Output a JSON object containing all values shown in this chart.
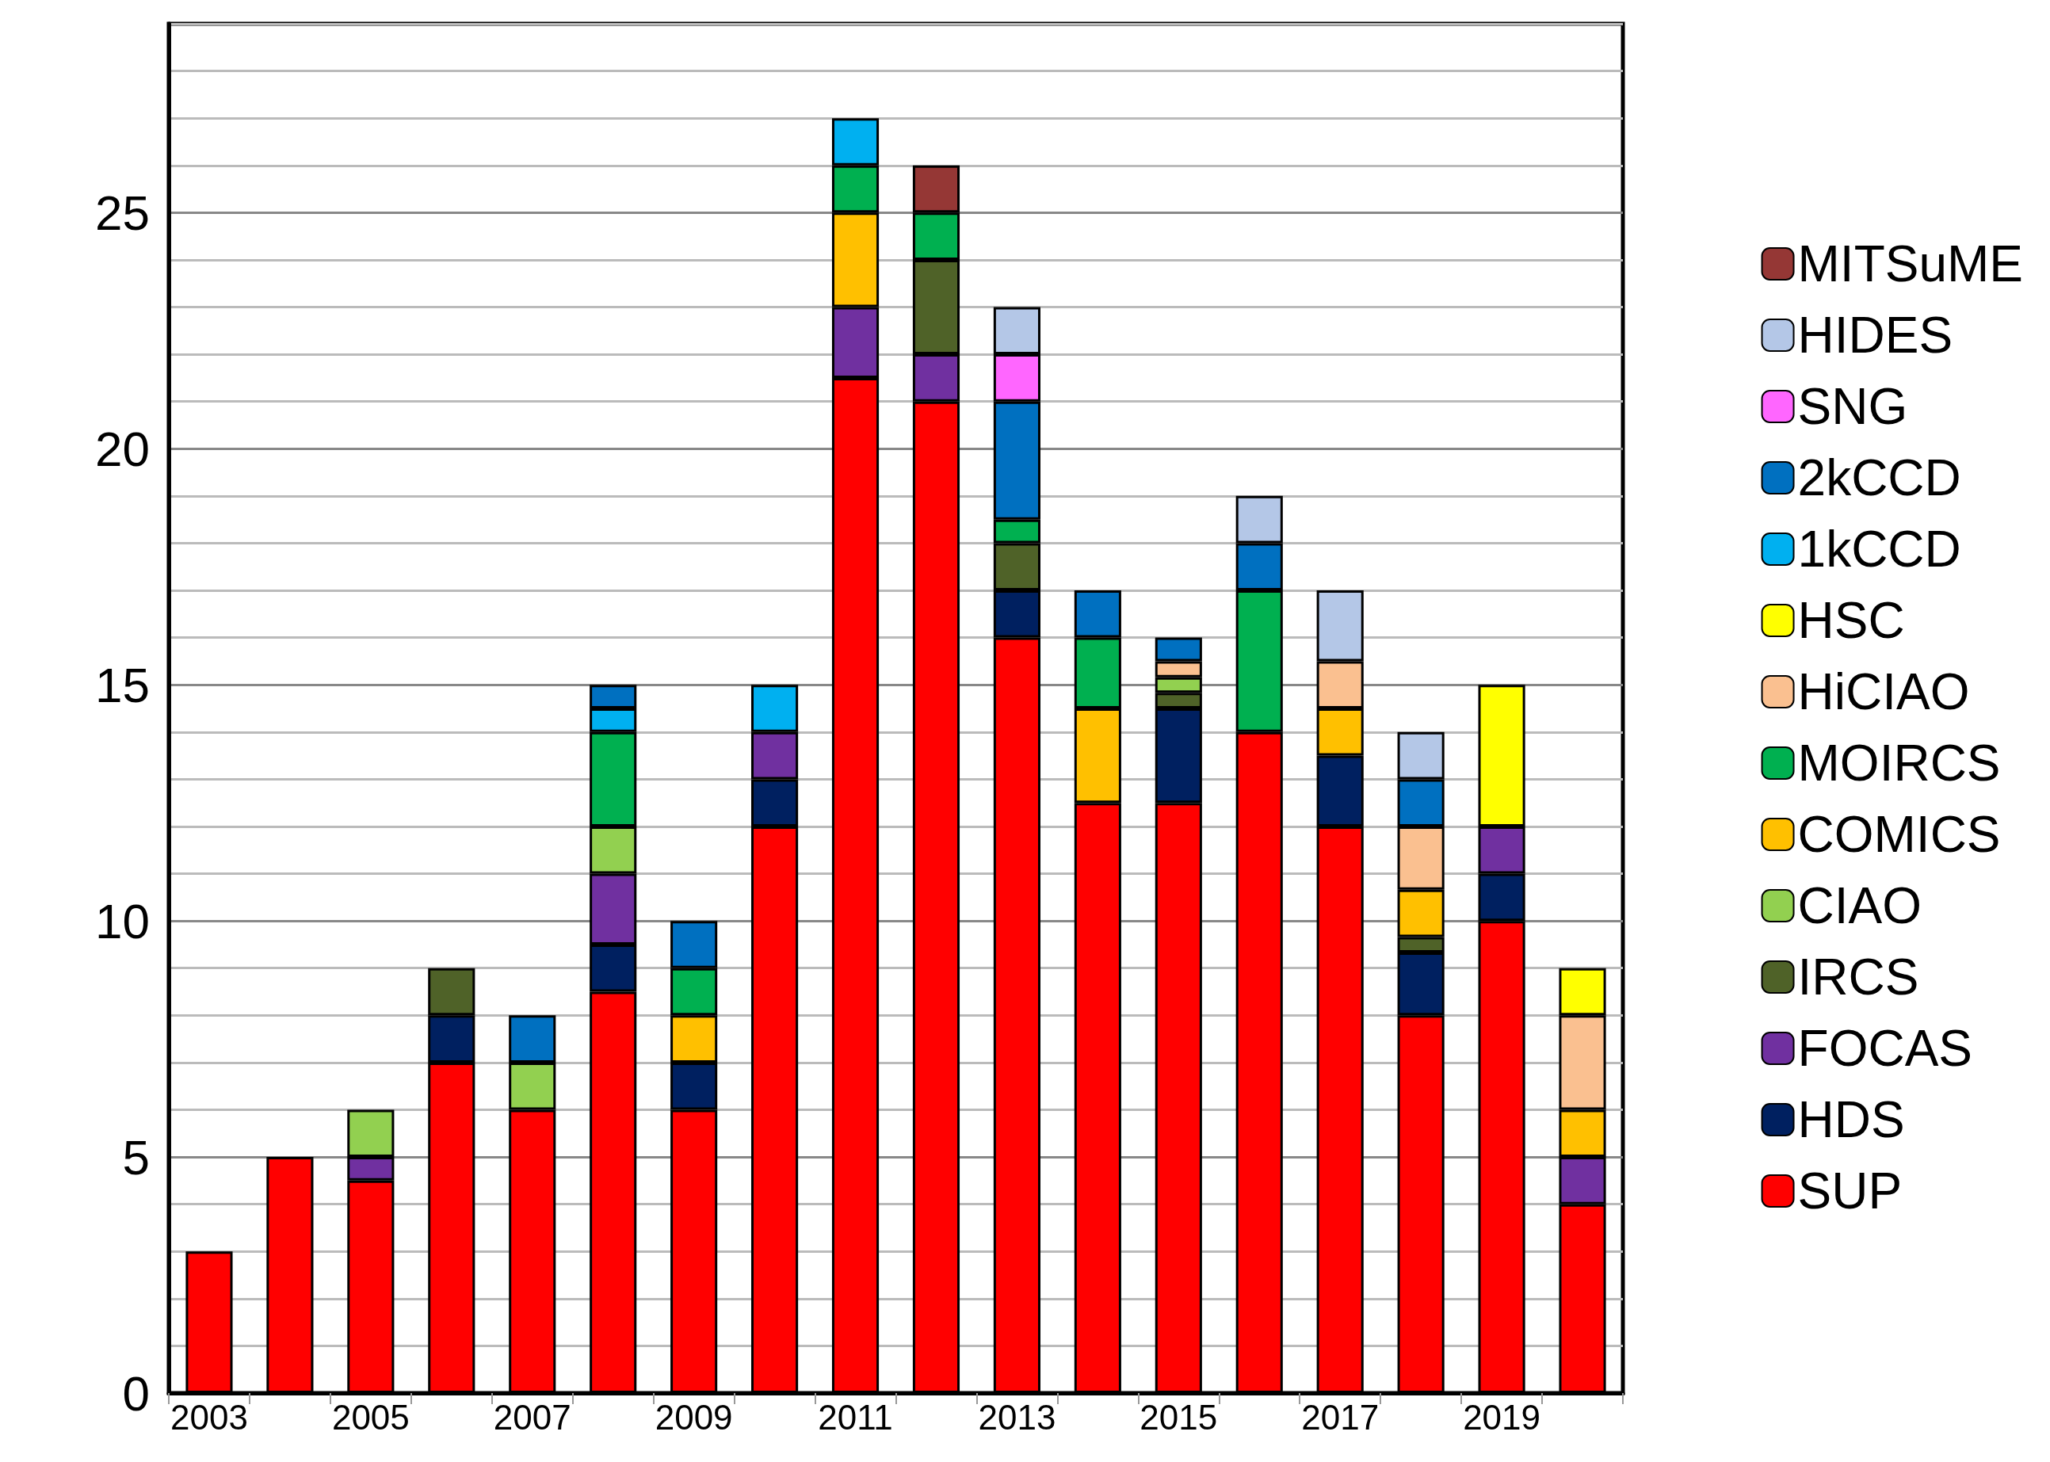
{
  "chart_data": {
    "type": "bar",
    "stacked": true,
    "categories": [
      "2003",
      null,
      "2005",
      null,
      "2007",
      null,
      "2009",
      null,
      "2011",
      null,
      "2013",
      null,
      "2015",
      null,
      "2017",
      null,
      "2019",
      null
    ],
    "ylim": [
      0,
      29
    ],
    "yticks": [
      0,
      {
        "value": 1,
        "label": null
      },
      {
        "value": 2,
        "label": null
      },
      {
        "value": 3,
        "label": null
      },
      {
        "value": 4,
        "label": null
      },
      5,
      {
        "value": 6,
        "label": null
      },
      {
        "value": 7,
        "label": null
      },
      {
        "value": 8,
        "label": null
      },
      {
        "value": 9,
        "label": null
      },
      10,
      {
        "value": 11,
        "label": null
      },
      {
        "value": 12,
        "label": null
      },
      {
        "value": 13,
        "label": null
      },
      {
        "value": 14,
        "label": null
      },
      15,
      {
        "value": 16,
        "label": null
      },
      {
        "value": 17,
        "label": null
      },
      {
        "value": 18,
        "label": null
      },
      {
        "value": 19,
        "label": null
      },
      20,
      {
        "value": 21,
        "label": null
      },
      {
        "value": 22,
        "label": null
      },
      {
        "value": 23,
        "label": null
      },
      {
        "value": 24,
        "label": null
      },
      25,
      {
        "value": 26,
        "label": null
      },
      {
        "value": 27,
        "label": null
      },
      {
        "value": 28,
        "label": null
      },
      {
        "value": 29,
        "label": null
      }
    ],
    "grid": "y",
    "legend": "right",
    "series": [
      {
        "name": "SUP",
        "color": "#ff0000",
        "values": [
          3,
          5,
          4.5,
          7,
          6,
          8.5,
          6,
          12,
          21.5,
          21,
          16,
          12.5,
          12.5,
          14,
          12,
          8,
          10,
          4
        ]
      },
      {
        "name": "HDS",
        "color": "#002060",
        "values": [
          null,
          null,
          null,
          1,
          null,
          1,
          1,
          1,
          null,
          null,
          1,
          null,
          2,
          null,
          1.5,
          1.33,
          1,
          null
        ]
      },
      {
        "name": "FOCAS",
        "color": "#7030a0",
        "values": [
          null,
          null,
          0.5,
          null,
          null,
          1.5,
          null,
          1,
          1.5,
          1,
          null,
          null,
          null,
          null,
          null,
          null,
          1,
          1
        ]
      },
      {
        "name": "IRCS",
        "color": "#4f6228",
        "values": [
          null,
          null,
          null,
          1,
          null,
          null,
          null,
          null,
          null,
          2,
          1,
          null,
          0.33,
          null,
          null,
          0.33,
          null,
          null
        ]
      },
      {
        "name": "CIAO",
        "color": "#92d050",
        "values": [
          null,
          null,
          1,
          null,
          1,
          1,
          null,
          null,
          null,
          null,
          null,
          null,
          0.33,
          null,
          null,
          null,
          null,
          null
        ]
      },
      {
        "name": "COMICS",
        "color": "#ffc000",
        "values": [
          null,
          null,
          null,
          null,
          null,
          null,
          1,
          null,
          2,
          null,
          null,
          2,
          null,
          null,
          1,
          1,
          null,
          1
        ]
      },
      {
        "name": "MOIRCS",
        "color": "#00b050",
        "values": [
          null,
          null,
          null,
          null,
          null,
          2,
          1,
          null,
          1,
          1,
          0.5,
          1.5,
          null,
          3,
          null,
          null,
          null,
          null
        ]
      },
      {
        "name": "HiCIAO",
        "color": "#fac090",
        "values": [
          null,
          null,
          null,
          null,
          null,
          null,
          null,
          null,
          null,
          null,
          null,
          null,
          0.34,
          null,
          1,
          1.34,
          null,
          2
        ]
      },
      {
        "name": "HSC",
        "color": "#ffff00",
        "values": [
          null,
          null,
          null,
          null,
          null,
          null,
          null,
          null,
          null,
          null,
          null,
          null,
          null,
          null,
          null,
          null,
          3,
          1
        ]
      },
      {
        "name": "1kCCD",
        "color": "#00b0f0",
        "values": [
          null,
          null,
          null,
          null,
          null,
          0.5,
          null,
          1,
          1,
          null,
          null,
          null,
          null,
          null,
          null,
          null,
          null,
          null
        ]
      },
      {
        "name": "2kCCD",
        "color": "#0070c0",
        "values": [
          null,
          null,
          null,
          null,
          1,
          0.5,
          1,
          null,
          null,
          null,
          2.5,
          1,
          0.5,
          1,
          null,
          1,
          null,
          null
        ]
      },
      {
        "name": "SNG",
        "color": "#ff66ff",
        "values": [
          null,
          null,
          null,
          null,
          null,
          null,
          null,
          null,
          null,
          null,
          1,
          null,
          null,
          null,
          null,
          null,
          null,
          null
        ]
      },
      {
        "name": "HIDES",
        "color": "#b4c7e7",
        "values": [
          null,
          null,
          null,
          null,
          null,
          null,
          null,
          null,
          null,
          null,
          1,
          null,
          null,
          1,
          1.5,
          1,
          null,
          null
        ]
      },
      {
        "name": "MITSuME",
        "color": "#953735",
        "values": [
          null,
          null,
          null,
          null,
          null,
          null,
          null,
          null,
          null,
          1,
          null,
          null,
          null,
          null,
          null,
          null,
          null,
          null
        ]
      }
    ]
  }
}
